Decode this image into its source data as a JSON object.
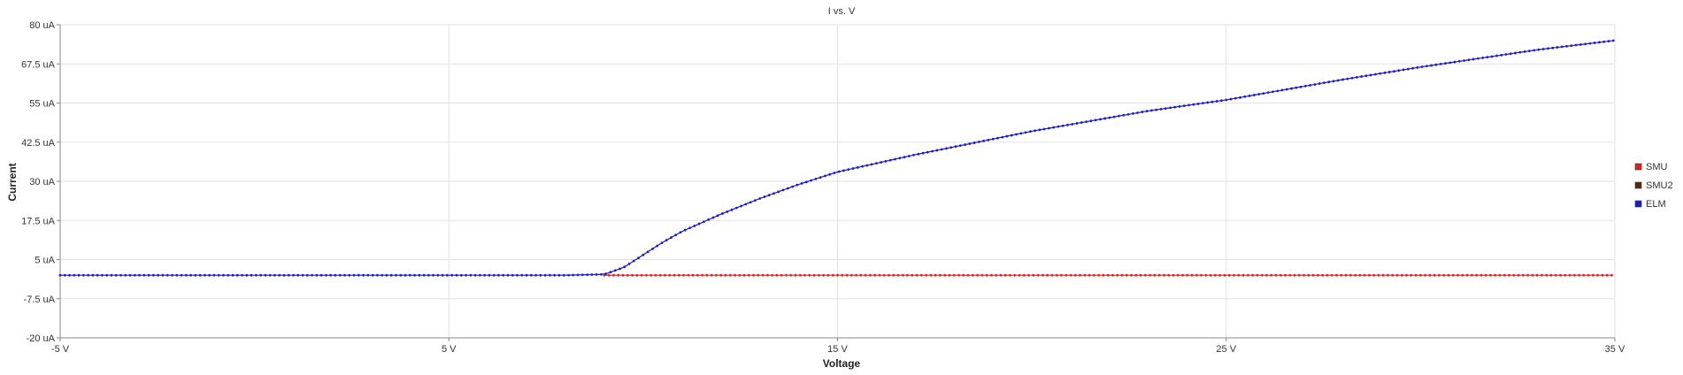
{
  "chart_data": {
    "type": "line",
    "title": "I vs. V",
    "xlabel": "Voltage",
    "ylabel": "Current",
    "xlim": [
      -5,
      35
    ],
    "ylim": [
      -20,
      80
    ],
    "grid": true,
    "legend_position": "right",
    "x_ticks": [
      {
        "value": -5,
        "label": "-5 V"
      },
      {
        "value": 5,
        "label": "5 V"
      },
      {
        "value": 15,
        "label": "15 V"
      },
      {
        "value": 25,
        "label": "25 V"
      },
      {
        "value": 35,
        "label": "35 V"
      }
    ],
    "y_ticks": [
      {
        "value": 80,
        "label": "80 uA"
      },
      {
        "value": 67.5,
        "label": "67.5 uA"
      },
      {
        "value": 55,
        "label": "55 uA"
      },
      {
        "value": 42.5,
        "label": "42.5 uA"
      },
      {
        "value": 30,
        "label": "30 uA"
      },
      {
        "value": 17.5,
        "label": "17.5 uA"
      },
      {
        "value": 5,
        "label": "5 uA"
      },
      {
        "value": -7.5,
        "label": "-7.5 uA"
      },
      {
        "value": -20,
        "label": "-20 uA"
      }
    ],
    "series": [
      {
        "name": "SMU",
        "color": "#e02020",
        "x": [
          -5,
          0,
          5,
          9,
          10,
          15,
          20,
          25,
          30,
          35
        ],
        "y": [
          0,
          0,
          0,
          0,
          0,
          0,
          0,
          0,
          0,
          0
        ]
      },
      {
        "name": "SMU2",
        "color": "#5a2a10",
        "x": [],
        "y": []
      },
      {
        "name": "ELM",
        "color": "#1c1ccc",
        "x": [
          -5,
          0,
          5,
          8,
          9,
          9.5,
          10,
          10.5,
          11,
          12,
          13,
          14,
          15,
          17,
          20,
          23,
          25,
          28,
          30,
          33,
          35
        ],
        "y": [
          0,
          0,
          0,
          0,
          0.3,
          2.5,
          6.5,
          10.5,
          14,
          19.5,
          24.5,
          29,
          33,
          38.5,
          46,
          52.5,
          56,
          62.5,
          66.5,
          72,
          75
        ]
      }
    ]
  }
}
